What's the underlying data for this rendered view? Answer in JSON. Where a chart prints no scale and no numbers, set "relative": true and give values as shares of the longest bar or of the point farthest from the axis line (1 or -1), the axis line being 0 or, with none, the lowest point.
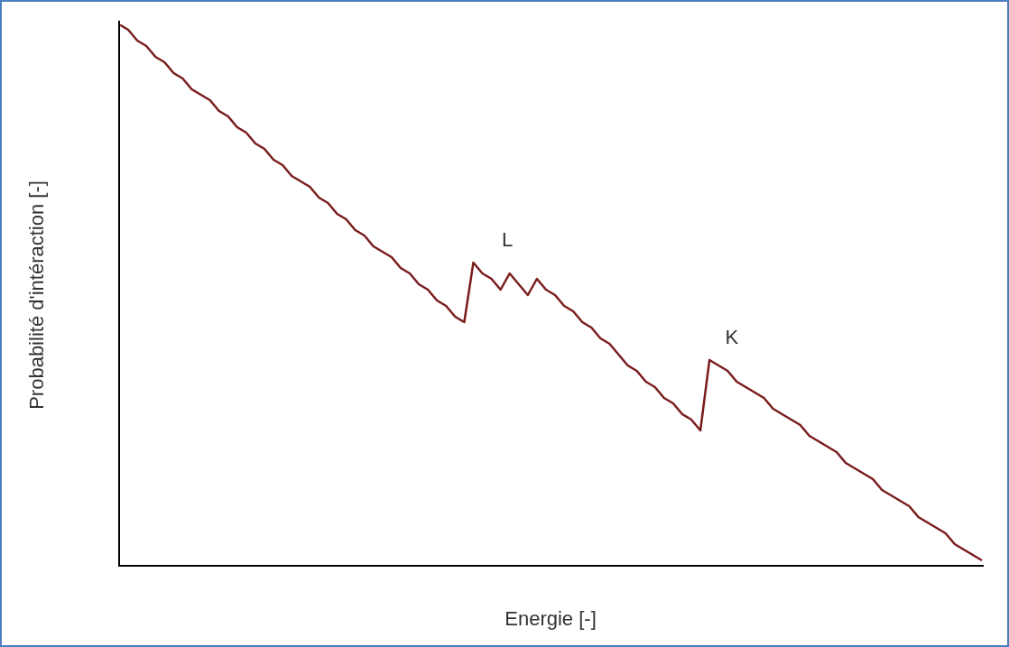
{
  "chart_data": {
    "type": "line",
    "xlabel": "Energie [-]",
    "ylabel": "Probabilité d'intéraction [-]",
    "relative": true,
    "marker": "none",
    "annotations": [
      "L",
      "K"
    ],
    "categories": [
      null,
      null,
      null,
      null,
      null,
      null,
      null,
      null,
      null,
      null,
      null,
      null,
      null,
      null,
      null,
      null,
      null,
      null,
      null,
      null,
      null,
      null,
      null,
      null,
      null,
      null,
      null,
      null,
      null,
      null,
      null,
      null,
      null,
      null,
      null,
      null,
      null,
      null,
      null,
      null,
      null,
      null,
      null,
      null,
      null,
      null,
      null,
      null,
      null,
      null,
      null,
      null,
      null,
      null,
      null,
      null,
      null,
      null,
      null,
      null,
      null,
      null,
      null,
      null,
      null,
      null,
      null,
      null,
      null,
      null,
      null,
      null,
      null,
      null,
      null,
      null,
      null,
      null,
      null,
      null,
      null,
      null,
      null,
      null,
      null,
      null,
      null,
      null,
      null,
      null,
      null,
      null,
      null,
      null,
      null,
      null
    ],
    "series": [
      {
        "color": "#7a1c1c",
        "values": [
          1,
          0.99,
          0.97,
          0.96,
          0.94,
          0.93,
          0.91,
          0.9,
          0.88,
          0.87,
          0.86,
          0.84,
          0.83,
          0.81,
          0.8,
          0.78,
          0.77,
          0.75,
          0.74,
          0.72,
          0.71,
          0.7,
          0.68,
          0.67,
          0.65,
          0.64,
          0.62,
          0.61,
          0.59,
          0.58,
          0.57,
          0.55,
          0.54,
          0.52,
          0.51,
          0.49,
          0.48,
          0.46,
          0.45,
          0.56,
          0.54,
          0.53,
          0.51,
          0.54,
          0.52,
          0.5,
          0.53,
          0.51,
          0.5,
          0.48,
          0.47,
          0.45,
          0.44,
          0.42,
          0.41,
          0.39,
          0.37,
          0.36,
          0.34,
          0.33,
          0.31,
          0.3,
          0.28,
          0.27,
          0.25,
          0.38,
          0.37,
          0.36,
          0.34,
          0.33,
          0.32,
          0.31,
          0.29,
          0.28,
          0.27,
          0.26,
          0.24,
          0.23,
          0.22,
          0.21,
          0.19,
          0.18,
          0.17,
          0.16,
          0.14,
          0.13,
          0.12,
          0.11,
          0.09,
          0.08,
          0.07,
          0.06,
          0.04,
          0.03,
          0.02,
          0.01
        ]
      }
    ]
  }
}
